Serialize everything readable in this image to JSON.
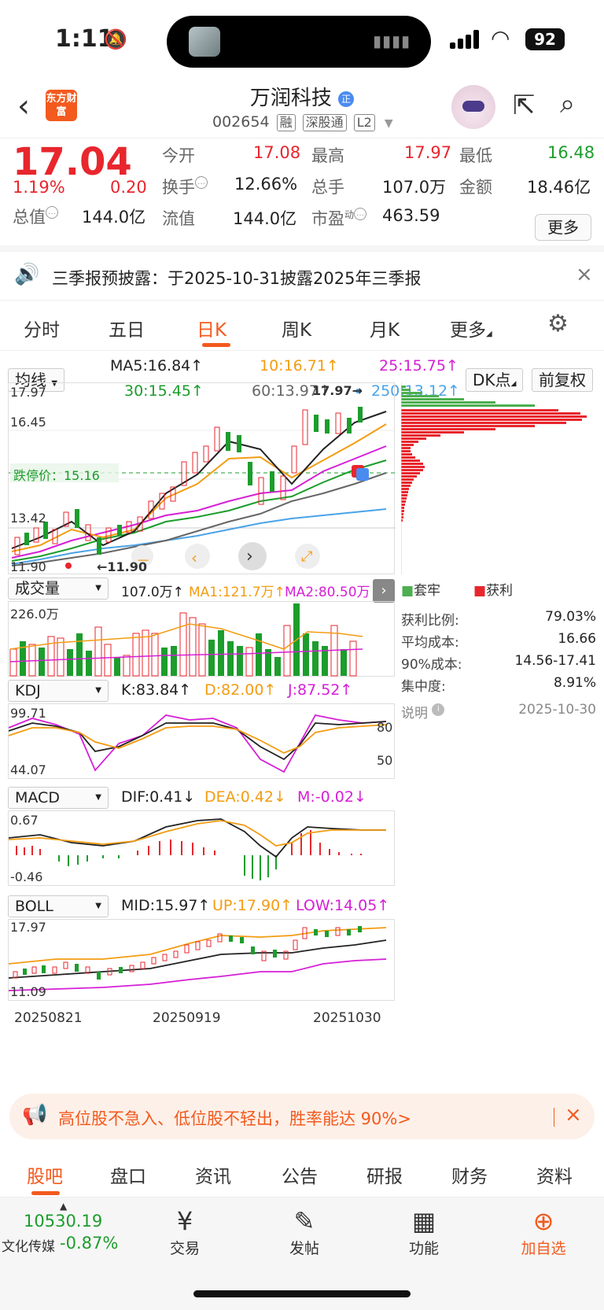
{
  "status_bar": {
    "time": "1:11",
    "battery": "92"
  },
  "header": {
    "logo_text": "东方财富",
    "title": "万润科技",
    "title_badge": "正",
    "code": "002654",
    "tags": [
      "融",
      "深股通",
      "L2"
    ]
  },
  "quote": {
    "price": "17.04",
    "change_pct": "1.19%",
    "change": "0.20",
    "open_label": "今开",
    "open": "17.08",
    "high_label": "最高",
    "high": "17.97",
    "low_label": "最低",
    "low": "16.48",
    "turnover_label": "换手",
    "turnover": "12.66%",
    "volume_label": "总手",
    "volume": "107.0万",
    "amount_label": "金额",
    "amount": "18.46亿",
    "mktcap_label": "总值",
    "mktcap": "144.0亿",
    "float_label": "流值",
    "float": "144.0亿",
    "pe_label": "市盈",
    "pe_sup": "动",
    "pe": "463.59",
    "more": "更多"
  },
  "notice": {
    "text": "三季报预披露：于2025-10-31披露2025年三季报"
  },
  "tabs": [
    {
      "label": "分时"
    },
    {
      "label": "五日"
    },
    {
      "label": "日K"
    },
    {
      "label": "周K"
    },
    {
      "label": "月K"
    },
    {
      "label": "更多"
    }
  ],
  "chart": {
    "ma_select": "均线",
    "ma5": "MA5:16.84↑",
    "ma10": "10:16.71↑",
    "ma25": "25:15.75↑",
    "ma30": "30:15.45↑",
    "ma60": "60:13.97↑",
    "ma250": "250:13.12↑",
    "dk_button": "DK点",
    "adjust_button": "前复权",
    "price_high": "17.97",
    "price_mid1": "16.45",
    "price_mid2": "13.42",
    "price_low": "11.90",
    "max_marker": "17.97→",
    "min_marker": "←11.90",
    "dip_price": "跌停价：15.16",
    "vol_select": "成交量",
    "vol_value": "107.0万↑",
    "vol_ma1": "MA1:121.7万↑",
    "vol_ma2": "MA2:80.50万",
    "vol_max": "226.0万",
    "kdj_select": "KDJ",
    "kdj_k": "K:83.84↑",
    "kdj_d": "D:82.00↑",
    "kdj_j": "J:87.52↑",
    "kdj_top": "99.71",
    "kdj_bottom": "44.07",
    "kdj_80": "80",
    "kdj_50": "50",
    "macd_select": "MACD",
    "macd_dif": "DIF:0.41↓",
    "macd_dea": "DEA:0.42↓",
    "macd_m": "M:-0.02↓",
    "macd_top": "0.67",
    "macd_bottom": "-0.46",
    "boll_select": "BOLL",
    "boll_mid": "MID:15.97↑",
    "boll_up": "UP:17.90↑",
    "boll_low": "LOW:14.05↑",
    "boll_top": "17.97",
    "boll_bottom": "11.09",
    "dates": [
      "20250821",
      "20250919",
      "20251030"
    ]
  },
  "chip": {
    "legend_trapped": "套牢",
    "legend_profit": "获利",
    "rows": [
      {
        "k": "获利比例:",
        "v": "79.03%"
      },
      {
        "k": "平均成本:",
        "v": "16.66"
      },
      {
        "k": "90%成本:",
        "v": "14.56-17.41"
      },
      {
        "k": "集中度:",
        "v": "8.91%"
      }
    ],
    "note_label": "说明",
    "note_date": "2025-10-30"
  },
  "banner": {
    "text": "高位股不急入、低位股不轻出，胜率能达 90%>"
  },
  "bottom_tabs": [
    {
      "label": "股吧"
    },
    {
      "label": "盘口"
    },
    {
      "label": "资讯"
    },
    {
      "label": "公告"
    },
    {
      "label": "研报"
    },
    {
      "label": "财务"
    },
    {
      "label": "资料"
    }
  ],
  "dock": {
    "index_value": "10530.19",
    "index_name": "文化传媒",
    "index_change": "-0.87%",
    "items": [
      {
        "label": "交易"
      },
      {
        "label": "发帖"
      },
      {
        "label": "功能"
      },
      {
        "label": "加自选"
      }
    ]
  },
  "colors": {
    "accent": "#f35a1e",
    "up": "#e8262d",
    "down": "#1c9d2c"
  }
}
